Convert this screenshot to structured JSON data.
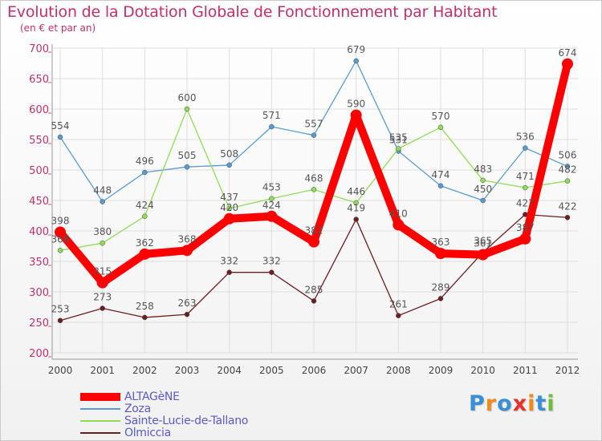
{
  "title": "Evolution de la Dotation Globale de Fonctionnement par Habitant",
  "subtitle": "(en € et par an)",
  "colors": {
    "title": "#c0306a",
    "axis_text": "#c0306a",
    "grid": "#dedede",
    "value_label": "#555555",
    "legend_text": "#5a5ac8"
  },
  "chart_data": {
    "type": "line",
    "title": "Evolution de la Dotation Globale de Fonctionnement par Habitant",
    "subtitle": "(en € et par an)",
    "xlabel": "",
    "ylabel": "",
    "categories": [
      "2000",
      "2001",
      "2002",
      "2003",
      "2004",
      "2005",
      "2006",
      "2007",
      "2008",
      "2009",
      "2010",
      "2011",
      "2012"
    ],
    "ylim": [
      200,
      700
    ],
    "yticks": [
      200,
      250,
      300,
      350,
      400,
      450,
      500,
      550,
      600,
      650,
      700
    ],
    "grid": true,
    "legend_position": "bottom-left",
    "series": [
      {
        "name": "Zoza",
        "color": "#5b9bd0",
        "emphasis": false,
        "values": [
          554,
          448,
          496,
          505,
          508,
          571,
          557,
          679,
          531,
          474,
          450,
          536,
          506
        ]
      },
      {
        "name": "Sainte-Lucie-de-Tallano",
        "color": "#8fdc5a",
        "emphasis": false,
        "values": [
          368,
          380,
          424,
          600,
          437,
          453,
          468,
          446,
          535,
          570,
          483,
          471,
          482
        ]
      },
      {
        "name": "Olmiccia",
        "color": "#6b1f1f",
        "emphasis": false,
        "values": [
          253,
          273,
          258,
          263,
          332,
          332,
          285,
          419,
          261,
          289,
          365,
          427,
          422
        ]
      },
      {
        "name": "ALTAGèNE",
        "color": "#ff0000",
        "emphasis": true,
        "values": [
          398,
          315,
          362,
          368,
          420,
          424,
          382,
          590,
          410,
          363,
          361,
          387,
          674
        ]
      }
    ]
  },
  "legend": [
    {
      "name": "ALTAGèNE",
      "color": "#ff0000"
    },
    {
      "name": "Zoza",
      "color": "#5b9bd0"
    },
    {
      "name": "Sainte-Lucie-de-Tallano",
      "color": "#8fdc5a"
    },
    {
      "name": "Olmiccia",
      "color": "#6b1f1f"
    }
  ],
  "brand": {
    "letters": [
      "P",
      "r",
      "o",
      "x",
      "i",
      "t",
      "i"
    ],
    "colors": [
      "#3a8fd6",
      "#f08a1c",
      "#3a8fd6",
      "#e6332a",
      "#f08a1c",
      "#3a8fd6",
      "#6cbf3a"
    ]
  }
}
